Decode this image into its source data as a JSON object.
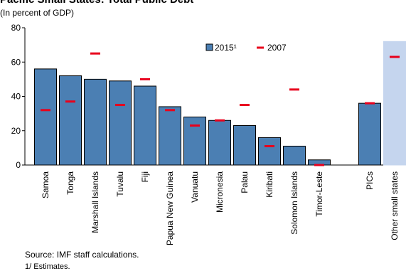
{
  "title": "Pacific Small States: Total Public Debt",
  "subtitle": "(In percent of GDP)",
  "source": "Source: IMF staff calculations.",
  "note": "1/ Estimates.",
  "colors": {
    "bar_2015": "#4b7fb3",
    "bar_2015_border": "#000000",
    "bar_other": "#c5d5ee",
    "marker_2007": "#e8001c",
    "axis": "#000000"
  },
  "chart_data": {
    "type": "bar",
    "title": "Pacific Small States: Total Public Debt",
    "subtitle": "(In percent of GDP)",
    "ylabel": "",
    "xlabel": "",
    "ylim": [
      0,
      80
    ],
    "yticks": [
      0,
      20,
      40,
      60,
      80
    ],
    "grid": false,
    "legend_position": "top-right",
    "categories": [
      "Samoa",
      "Tonga",
      "Marshall Islands",
      "Tuvalu",
      "Fiji",
      "Papua New Guinea",
      "Vanuatu",
      "Micronesia",
      "Palau",
      "Kiribati",
      "Solomon Islands",
      "Timor-Leste",
      "PICs",
      "Other small states"
    ],
    "series": [
      {
        "name": "2015¹",
        "kind": "bar",
        "values": [
          56,
          52,
          50,
          49,
          46,
          34,
          28,
          26,
          23,
          16,
          11,
          3,
          36,
          72
        ]
      },
      {
        "name": "2007",
        "kind": "marker",
        "values": [
          32,
          37,
          65,
          35,
          50,
          32,
          23,
          26,
          35,
          11,
          44,
          0,
          36,
          63
        ]
      }
    ]
  }
}
